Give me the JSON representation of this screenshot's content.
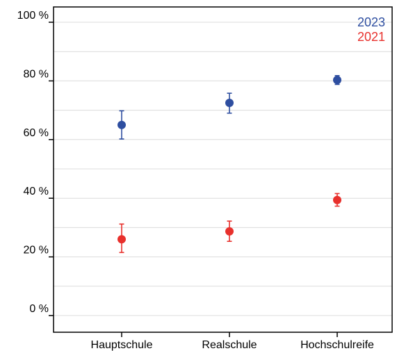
{
  "chart_data": {
    "type": "scatter",
    "categories": [
      "Hauptschule",
      "Realschule",
      "Hochschulreife"
    ],
    "series": [
      {
        "name": "2023",
        "color": "#2e4ea0",
        "values": [
          65,
          72.5,
          80.3
        ],
        "err_low": [
          60.2,
          69.0,
          78.8
        ],
        "err_high": [
          69.8,
          75.8,
          81.8
        ]
      },
      {
        "name": "2021",
        "color": "#e8302c",
        "values": [
          26,
          28.7,
          39.4
        ],
        "err_low": [
          21.5,
          25.3,
          37.3
        ],
        "err_high": [
          31.2,
          32.2,
          41.6
        ]
      }
    ],
    "yticks": [
      0,
      20,
      40,
      60,
      80,
      100
    ],
    "ytick_labels": [
      "0 %",
      "20 %",
      "40 %",
      "60 %",
      "80 %",
      "100 %"
    ],
    "ylim": [
      0,
      100
    ],
    "grid": true,
    "legend_position": "top-right"
  }
}
